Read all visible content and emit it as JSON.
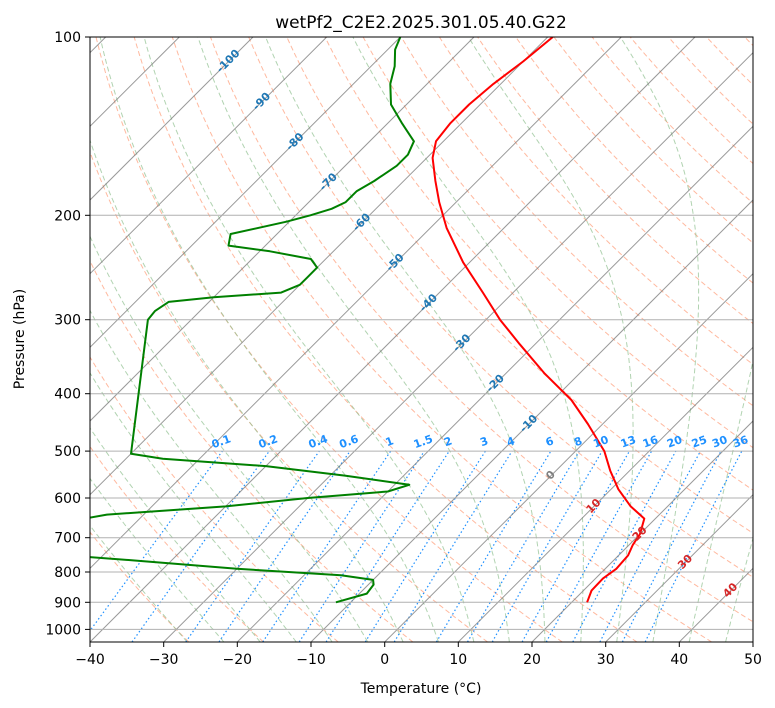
{
  "chart_data": {
    "type": "line",
    "title": "wetPf2_C2E2.2025.301.05.40.G22",
    "xlabel": "Temperature (°C)",
    "ylabel": "Pressure (hPa)",
    "xlim": [
      -40,
      50
    ],
    "ylim": [
      1050,
      100
    ],
    "y_scale": "log",
    "grid": true,
    "x_ticks": [
      -40,
      -30,
      -20,
      -10,
      0,
      10,
      20,
      30,
      40,
      50
    ],
    "y_ticks": [
      100,
      200,
      300,
      400,
      500,
      600,
      700,
      800,
      900,
      1000
    ],
    "isotherm_labels": [
      "-100",
      "-90",
      "-80",
      "-70",
      "-60",
      "-50",
      "-40",
      "-30",
      "-20",
      "-10",
      "0",
      "10",
      "20",
      "30",
      "40"
    ],
    "mixing_ratio_labels": [
      "0.1",
      "0.2",
      "0.4",
      "0.6",
      "1",
      "1.5",
      "2",
      "3",
      "4",
      "6",
      "8",
      "10",
      "13",
      "16",
      "20",
      "25",
      "30",
      "36"
    ],
    "colors": {
      "temperature": "#ff0000",
      "dewpoint": "#008000",
      "isotherm": "#808080",
      "dry_adiabat": "#ff7f50",
      "moist_adiabat": "#90c090",
      "mixing_ratio": "#1e90ff",
      "negative_isotherm_label": "#1f77b4",
      "positive_isotherm_label": "#d62728"
    },
    "series": [
      {
        "name": "",
        "role": "temperature",
        "pressure": [
          900,
          860,
          820,
          790,
          750,
          720,
          690,
          650,
          620,
          580,
          540,
          500,
          450,
          410,
          370,
          330,
          300,
          270,
          240,
          210,
          190,
          175,
          160,
          150,
          140,
          130,
          120,
          110,
          100
        ],
        "temperature": [
          22.1,
          21.1,
          21.0,
          21.5,
          21.3,
          20.5,
          20.0,
          18.5,
          15.0,
          11.0,
          7.4,
          3.9,
          -2.0,
          -7.5,
          -14.7,
          -22.1,
          -28.1,
          -34.1,
          -40.9,
          -47.8,
          -52.3,
          -55.7,
          -59.2,
          -61.0,
          -61.5,
          -61.5,
          -61.0,
          -60.0,
          -59.3
        ]
      },
      {
        "name": "",
        "role": "dewpoint",
        "pressure": [
          900,
          870,
          840,
          825,
          810,
          790,
          765,
          750,
          730,
          705,
          690,
          680,
          660,
          640,
          620,
          600,
          585,
          570,
          550,
          530,
          515,
          505,
          300,
          290,
          280,
          275,
          270,
          262,
          255,
          245,
          237,
          230,
          225,
          215,
          205,
          200,
          195,
          190,
          182,
          175,
          165,
          158,
          150,
          140,
          130,
          120,
          112,
          105,
          100
        ],
        "temperature": [
          -12.0,
          -9.0,
          -9.3,
          -10.0,
          -15.0,
          -30.0,
          -45.0,
          -55.0,
          -60.0,
          -58.0,
          -54.7,
          -58.0,
          -60.0,
          -55.0,
          -40.0,
          -30.0,
          -20.0,
          -18.0,
          -28.0,
          -40.0,
          -55.0,
          -60.0,
          -75.9,
          -76.1,
          -75.5,
          -70.0,
          -61.5,
          -60.0,
          -60.0,
          -60.0,
          -62.0,
          -68.6,
          -75.0,
          -76.3,
          -70.4,
          -68.0,
          -66.0,
          -65.0,
          -65.0,
          -64.0,
          -63.0,
          -63.0,
          -64.0,
          -68.0,
          -72.1,
          -75.0,
          -76.8,
          -79.0,
          -80.0
        ]
      }
    ]
  }
}
